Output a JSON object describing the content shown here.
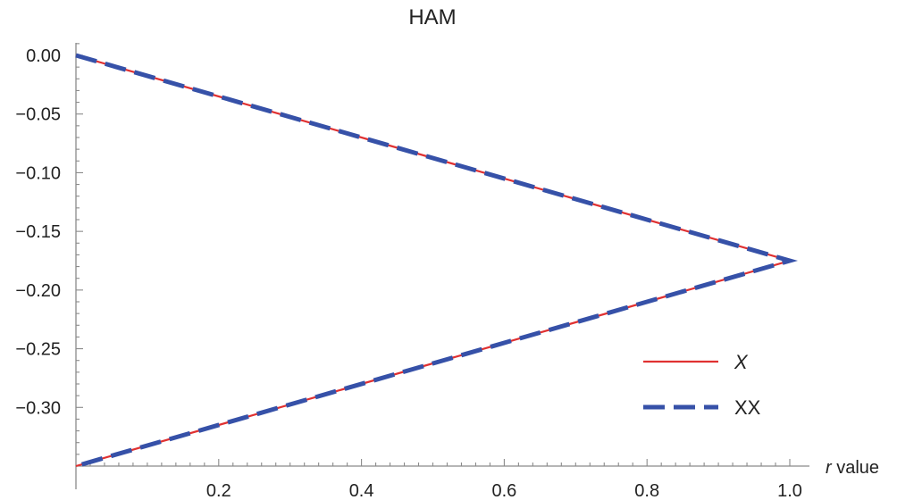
{
  "chart_data": {
    "type": "line",
    "title": "HAM",
    "xlabel_italic": "r",
    "xlabel_rest": " value",
    "ylabel": "",
    "xlim": [
      0,
      1.0
    ],
    "ylim": [
      -0.35,
      0.0
    ],
    "x_ticks": [
      0.2,
      0.4,
      0.6,
      0.8,
      1.0
    ],
    "x_tick_labels": [
      "0.2",
      "0.4",
      "0.6",
      "0.8",
      "1.0"
    ],
    "y_ticks": [
      0.0,
      -0.05,
      -0.1,
      -0.15,
      -0.2,
      -0.25,
      -0.3
    ],
    "y_tick_labels": [
      "0.00",
      "−0.05",
      "−0.10",
      "−0.15",
      "−0.20",
      "−0.25",
      "−0.30"
    ],
    "legend_position": "lower-right",
    "series": [
      {
        "name": "X",
        "name_italic": true,
        "color": "#e03131",
        "style": "solid",
        "x": [
          0.0,
          1.0,
          0.0
        ],
        "y": [
          0.0,
          -0.175,
          -0.35
        ]
      },
      {
        "name": "XX",
        "name_italic": false,
        "color": "#3651a8",
        "style": "dashed",
        "x": [
          0.0,
          1.0,
          0.0
        ],
        "y": [
          0.0,
          -0.175,
          -0.35
        ]
      }
    ]
  }
}
